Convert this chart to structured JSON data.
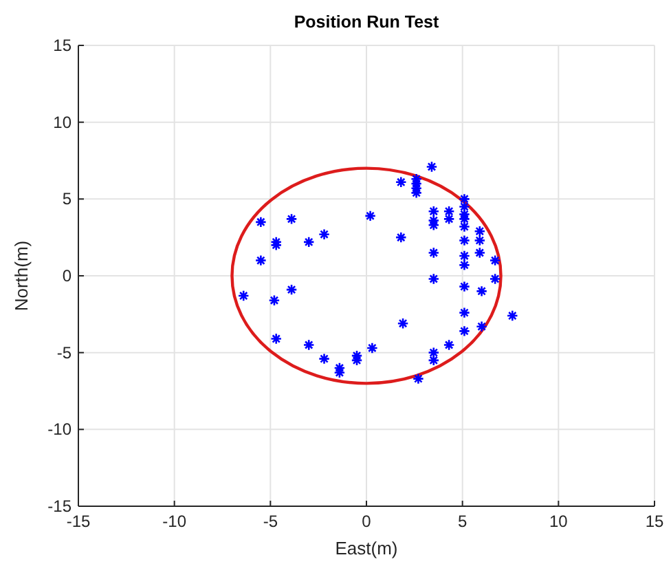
{
  "chart_data": {
    "type": "scatter",
    "title": "Position Run Test",
    "xlabel": "East(m)",
    "ylabel": "North(m)",
    "xlim": [
      -15,
      15
    ],
    "ylim": [
      -15,
      15
    ],
    "xticks": [
      -15,
      -10,
      -5,
      0,
      5,
      10,
      15
    ],
    "yticks": [
      -15,
      -10,
      -5,
      0,
      5,
      10,
      15
    ],
    "grid": true,
    "series": [
      {
        "type": "scatter",
        "marker": "cross",
        "color": "#0000ff",
        "x": [
          3.4,
          1.8,
          2.6,
          2.6,
          2.6,
          2.6,
          5.1,
          5.1,
          5.1,
          5.1,
          5.1,
          5.1,
          5.1,
          5.1,
          5.1,
          5.1,
          5.1,
          3.5,
          3.5,
          3.5,
          4.3,
          4.3,
          5.9,
          5.9,
          5.9,
          6.7,
          6.7,
          6.0,
          6.0,
          7.6,
          3.5,
          3.5,
          1.8,
          1.9,
          0.2,
          0.3,
          3.5,
          3.5,
          4.3,
          2.7,
          -0.5,
          -0.5,
          -1.4,
          -1.4,
          -2.2,
          -3.0,
          -4.7,
          -4.8,
          -3.9,
          -6.4,
          -5.5,
          -5.5,
          -3.9,
          -4.7,
          -4.7,
          -3.0,
          -2.2
        ],
        "values": [
          7.1,
          6.1,
          6.3,
          6.0,
          5.7,
          5.4,
          5.0,
          4.5,
          4.0,
          3.7,
          3.2,
          2.3,
          1.3,
          0.7,
          -0.7,
          -2.4,
          -3.6,
          4.2,
          3.6,
          3.3,
          4.2,
          3.7,
          2.9,
          2.3,
          1.5,
          1.0,
          -0.2,
          -1.0,
          -3.3,
          -2.6,
          1.5,
          -0.2,
          2.5,
          -3.1,
          3.9,
          -4.7,
          -5.0,
          -5.5,
          -4.5,
          -6.7,
          -5.2,
          -5.5,
          -6.0,
          -6.3,
          -5.4,
          -4.5,
          -4.1,
          -1.6,
          -0.9,
          -1.3,
          1.0,
          3.5,
          3.7,
          2.2,
          2.0,
          2.2,
          2.7
        ]
      }
    ]
  }
}
